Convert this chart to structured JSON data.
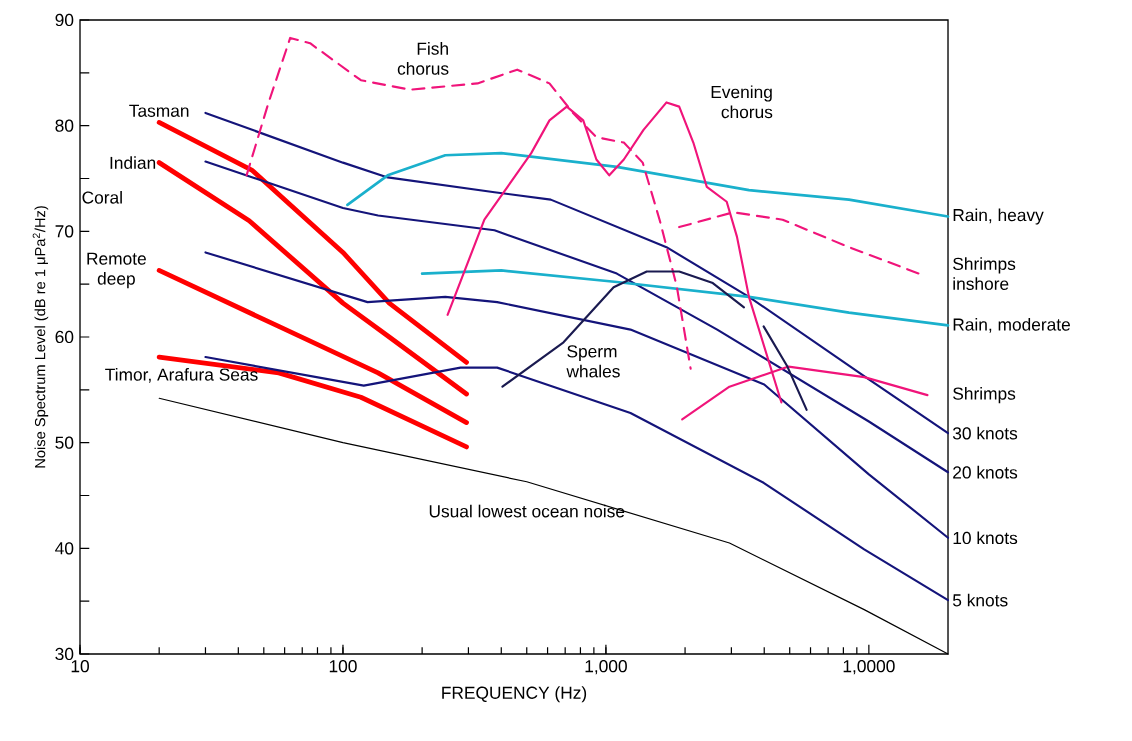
{
  "chart_data": {
    "type": "line",
    "xlabel": "FREQUENCY (Hz)",
    "ylabel": "Noise Spectrum Level (dB re 1 μPa$^{2}$/Hz)",
    "log": "x",
    "xlim": [
      10,
      20000
    ],
    "ylim": [
      30,
      90
    ],
    "xticks": [
      10,
      100,
      {
        "value": 1000,
        "label": "1,000"
      },
      {
        "value": 10000,
        "label": "1,0000"
      }
    ],
    "yticks": [
      30,
      {
        "value": 35,
        "label": null
      },
      40,
      {
        "value": 45,
        "label": null
      },
      50,
      {
        "value": 55,
        "label": null
      },
      60,
      {
        "value": 65,
        "label": null
      },
      70,
      {
        "value": 75,
        "label": null
      },
      80,
      {
        "value": 85,
        "label": null
      },
      90
    ],
    "marker": "none",
    "annotations": [
      "Coral"
    ],
    "series": [
      {
        "name": "Tasman",
        "color": "#ff0000",
        "x": [
          20,
          45,
          100,
          150,
          295
        ],
        "values": [
          80.3,
          75.8,
          68,
          63.2,
          57.6
        ]
      },
      {
        "name": "Indian",
        "color": "#ff0000",
        "x": [
          20,
          44,
          100,
          150,
          295
        ],
        "values": [
          76.5,
          71,
          63.2,
          60,
          54.6
        ]
      },
      {
        "name": "Remote deep",
        "color": "#ff0000",
        "x": [
          20,
          57,
          136,
          295
        ],
        "values": [
          66.3,
          61,
          56.6,
          51.9
        ]
      },
      {
        "name": "Timor, Arafura Seas",
        "color": "#ff0000",
        "x": [
          20,
          57,
          117,
          295
        ],
        "values": [
          58.1,
          56.6,
          54.3,
          49.6
        ]
      },
      {
        "name": "30 knots",
        "color": "#14147a",
        "x": [
          30,
          100,
          148,
          377,
          617,
          1700,
          3500,
          10000,
          20000
        ],
        "values": [
          81.2,
          76.5,
          75.1,
          73.7,
          73,
          68.5,
          63.8,
          56,
          50.9
        ]
      },
      {
        "name": "20 knots",
        "color": "#14147a",
        "x": [
          30,
          100,
          136,
          377,
          1100,
          2650,
          10000,
          20000
        ],
        "values": [
          76.6,
          72.2,
          71.5,
          70.1,
          66,
          60.7,
          52,
          47.2
        ]
      },
      {
        "name": "10 knots",
        "color": "#14147a",
        "x": [
          30,
          124,
          245,
          386,
          1240,
          4000,
          10000,
          20000
        ],
        "values": [
          68,
          63.3,
          63.8,
          63.3,
          60.7,
          55.5,
          47,
          41
        ]
      },
      {
        "name": "5 knots",
        "color": "#14147a",
        "x": [
          30,
          120,
          280,
          386,
          1240,
          3980,
          9600,
          20000
        ],
        "values": [
          58.1,
          55.4,
          57.1,
          57.1,
          52.8,
          46.2,
          39.9,
          35.1
        ]
      },
      {
        "name": "Usual lowest ocean noise",
        "color": "#000000",
        "x": [
          20,
          100,
          500,
          2950,
          9600,
          20000
        ],
        "values": [
          54.2,
          50,
          46.3,
          40.5,
          34.2,
          30
        ]
      },
      {
        "name": "Rain, heavy",
        "color": "#1ab0cc",
        "x": [
          104,
          148,
          245,
          400,
          1100,
          3500,
          8400,
          20000
        ],
        "values": [
          72.5,
          75.3,
          77.2,
          77.4,
          76.1,
          73.9,
          73,
          71.4
        ]
      },
      {
        "name": "Rain, moderate",
        "color": "#1ab0cc",
        "x": [
          200,
          400,
          1100,
          3500,
          8400,
          20000
        ],
        "values": [
          66,
          66.3,
          65.2,
          63.8,
          62.3,
          61.1
        ]
      },
      {
        "name": "Fish chorus",
        "color": "#f0147a",
        "line_style": "dashed",
        "x": [
          43,
          52,
          63,
          75,
          117,
          180,
          325,
          460,
          610,
          750,
          920,
          1170,
          1380,
          1600,
          1860,
          2100
        ],
        "values": [
          75.3,
          82.1,
          88.3,
          87.8,
          84.3,
          83.4,
          84,
          85.3,
          84,
          81.2,
          78.9,
          78.4,
          76.5,
          71.1,
          64.8,
          57
        ]
      },
      {
        "name": "Evening chorus",
        "color": "#f0147a",
        "x": [
          250,
          345,
          520,
          610,
          710,
          820,
          920,
          1030,
          1170,
          1390,
          1700,
          1900,
          2150,
          2420,
          2880,
          3150,
          3500,
          4650
        ],
        "values": [
          62.1,
          71.1,
          77.4,
          80.5,
          81.8,
          80.5,
          76.8,
          75.3,
          76.8,
          79.6,
          82.2,
          81.8,
          78.4,
          74.2,
          72.8,
          69.5,
          63.8,
          53.8
        ]
      },
      {
        "name": "Shrimps inshore",
        "color": "#f0147a",
        "line_style": "dashed",
        "x": [
          1900,
          3050,
          4700,
          8400,
          15500
        ],
        "values": [
          70.4,
          71.8,
          71.1,
          68.5,
          66
        ]
      },
      {
        "name": "Shrimps",
        "color": "#f0147a",
        "x": [
          1950,
          2950,
          4950,
          9600,
          16700
        ],
        "values": [
          52.2,
          55.3,
          57.2,
          56.2,
          54.5
        ]
      },
      {
        "name": "Sperm whales",
        "color": "#1a1a50",
        "x": [
          404,
          690,
          1070,
          1430,
          1900,
          2550,
          3350
        ],
        "values": [
          55.3,
          59.5,
          64.7,
          66.2,
          66.2,
          65.1,
          62.8
        ]
      },
      {
        "color": "#1a1a50",
        "x": [
          3980,
          4900,
          5800
        ],
        "values": [
          61,
          57.2,
          53.1
        ]
      }
    ]
  }
}
